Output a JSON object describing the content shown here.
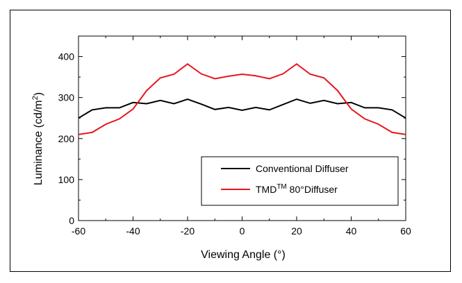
{
  "chart_data": {
    "type": "line",
    "xlabel": "Viewing Angle (°)",
    "ylabel": "Luminance (cd/m²)",
    "xlim": [
      -60,
      60
    ],
    "ylim": [
      0,
      450
    ],
    "xticks": [
      -60,
      -40,
      -20,
      0,
      20,
      40,
      60
    ],
    "yticks": [
      0,
      100,
      200,
      300,
      400
    ],
    "grid": false,
    "legend_position": "bottom-right",
    "series": [
      {
        "name": "Conventional Diffuser",
        "color": "#000000",
        "x": [
          -60,
          -55,
          -50,
          -45,
          -40,
          -35,
          -30,
          -25,
          -20,
          -15,
          -10,
          -5,
          0,
          5,
          10,
          15,
          20,
          25,
          30,
          35,
          40,
          45,
          50,
          55,
          60
        ],
        "y": [
          250,
          270,
          275,
          275,
          288,
          285,
          293,
          285,
          296,
          284,
          271,
          276,
          269,
          276,
          270,
          283,
          296,
          286,
          293,
          285,
          288,
          275,
          275,
          270,
          250
        ]
      },
      {
        "name": "TMD™ 80° Diffuser",
        "color": "#e8141b",
        "x": [
          -60,
          -55,
          -50,
          -45,
          -40,
          -35,
          -30,
          -25,
          -20,
          -15,
          -10,
          -5,
          0,
          5,
          10,
          15,
          20,
          25,
          30,
          35,
          40,
          45,
          50,
          55,
          60
        ],
        "y": [
          210,
          215,
          235,
          248,
          272,
          317,
          348,
          357,
          382,
          358,
          346,
          352,
          357,
          353,
          346,
          358,
          382,
          357,
          348,
          317,
          272,
          248,
          235,
          215,
          210
        ]
      }
    ]
  },
  "legend": {
    "item1": "Conventional Diffuser",
    "item2_main": "TMD",
    "item2_sup": "TM",
    "item2_rest": " 80°Diffuser"
  },
  "axes": {
    "ylabel_main": "Luminance (cd/m",
    "ylabel_sup": "2",
    "ylabel_end": ")",
    "xlabel": "Viewing Angle (°)"
  }
}
